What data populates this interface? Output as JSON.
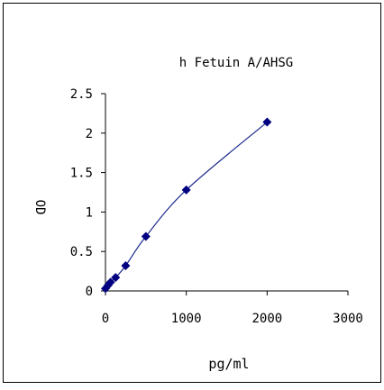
{
  "chart_data": {
    "type": "scatter",
    "title": "h Fetuin A/AHSG",
    "xlabel": "pg/ml",
    "ylabel": "OD",
    "xlim": [
      0,
      3000
    ],
    "ylim": [
      0,
      2.5
    ],
    "xticks": [
      0,
      1000,
      2000,
      3000
    ],
    "yticks": [
      0,
      0.5,
      1,
      1.5,
      2,
      2.5
    ],
    "xtick_labels": [
      "0",
      "1000",
      "2000",
      "3000"
    ],
    "ytick_labels": [
      "0",
      "0.5",
      "1",
      "1.5",
      "2",
      "2.5"
    ],
    "grid": false,
    "legend": "none",
    "marker": "diamond",
    "marker_color": "#000080",
    "line_color": "#1c2a8c",
    "series": [
      {
        "x": [
          0,
          31.25,
          62.5,
          125,
          250,
          500,
          1000,
          2000
        ],
        "y": [
          0.03,
          0.07,
          0.11,
          0.17,
          0.32,
          0.69,
          1.28,
          2.14
        ]
      }
    ]
  }
}
